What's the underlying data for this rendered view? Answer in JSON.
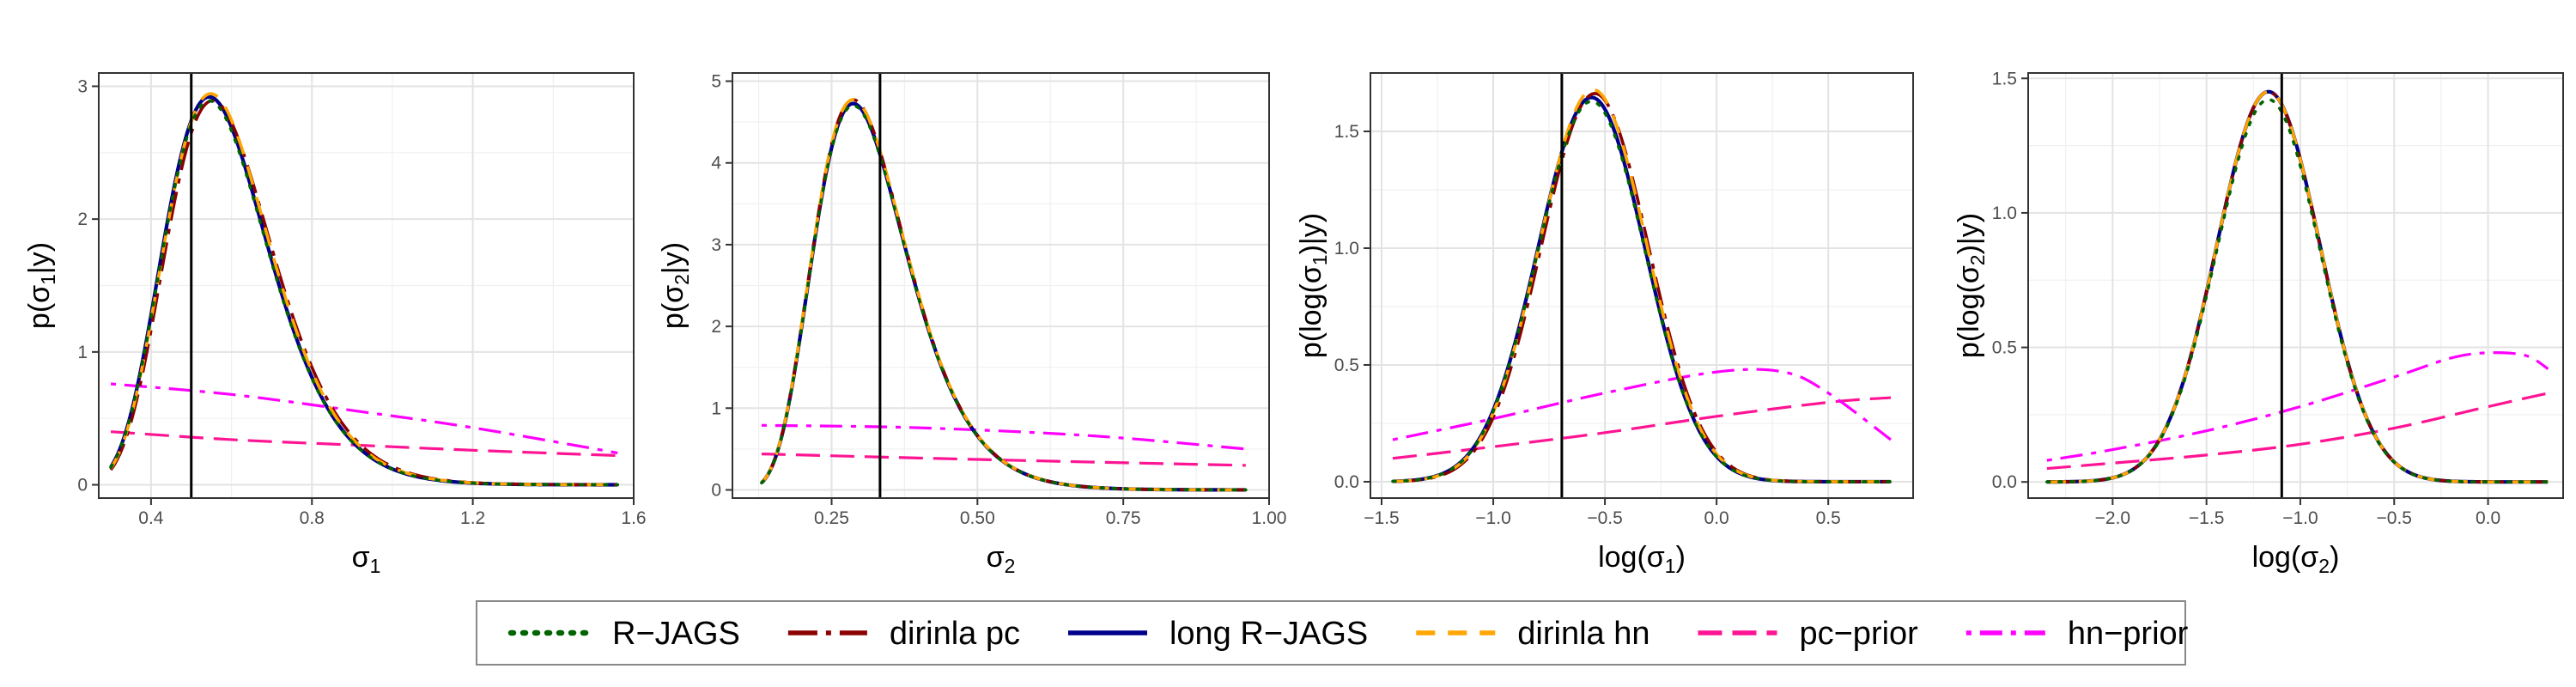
{
  "legend": {
    "items": [
      {
        "label": "R−JAGS",
        "color": "#006400",
        "dash": "3,11",
        "cap": "round"
      },
      {
        "label": "dirinla pc",
        "color": "#8b0000",
        "dash": "34,10,6,10",
        "cap": "butt"
      },
      {
        "label": "long R−JAGS",
        "color": "#00008b",
        "dash": "",
        "cap": "butt"
      },
      {
        "label": "dirinla hn",
        "color": "#ffa500",
        "dash": "22,15",
        "cap": "butt"
      },
      {
        "label": "pc−prior",
        "color": "#ff1493",
        "dash": "28,12",
        "cap": "butt"
      },
      {
        "label": "hn−prior",
        "color": "#ff00ff",
        "dash": "6,10,26,10",
        "cap": "butt"
      }
    ]
  },
  "chart_data": [
    {
      "type": "line",
      "xlabel": {
        "main": "σ",
        "sub": "1"
      },
      "ylabel": {
        "pre": "p(σ",
        "sub": "1",
        "post": "|y)"
      },
      "xlim": [
        0.27,
        1.6
      ],
      "ylim": [
        -0.1,
        3.1
      ],
      "xticks": [
        {
          "v": 0.4,
          "t": "0.4"
        },
        {
          "v": 0.8,
          "t": "0.8"
        },
        {
          "v": 1.2,
          "t": "1.2"
        },
        {
          "v": 1.6,
          "t": "1.6"
        }
      ],
      "yticks": [
        {
          "v": 0,
          "t": "0"
        },
        {
          "v": 1,
          "t": "1"
        },
        {
          "v": 2,
          "t": "2"
        },
        {
          "v": 3,
          "t": "3"
        }
      ],
      "vline": 0.5,
      "grid": true,
      "posterior": {
        "dist": "lognormal",
        "mu": -0.55,
        "s": 0.24,
        "range": [
          0.3,
          1.56
        ]
      },
      "series": [
        {
          "name": "R−JAGS",
          "mu_shift": 0.0,
          "scale": 0.975
        },
        {
          "name": "dirinla pc",
          "mu_shift": 0.015,
          "scale": 0.99
        },
        {
          "name": "long R−JAGS",
          "mu_shift": 0.0,
          "scale": 0.985
        },
        {
          "name": "dirinla hn",
          "mu_shift": 0.007,
          "scale": 1.0
        }
      ],
      "priors": [
        {
          "name": "pc−prior",
          "x": [
            0.3,
            0.6,
            0.9,
            1.2,
            1.56
          ],
          "y": [
            0.4,
            0.34,
            0.3,
            0.26,
            0.22
          ]
        },
        {
          "name": "hn−prior",
          "x": [
            0.3,
            0.6,
            0.9,
            1.2,
            1.56
          ],
          "y": [
            0.76,
            0.68,
            0.56,
            0.43,
            0.24
          ]
        }
      ]
    },
    {
      "type": "line",
      "xlabel": {
        "main": "σ",
        "sub": "2"
      },
      "ylabel": {
        "pre": "p(σ",
        "sub": "2",
        "post": "|y)"
      },
      "xlim": [
        0.08,
        1.0
      ],
      "ylim": [
        -0.1,
        5.1
      ],
      "xticks": [
        {
          "v": 0.25,
          "t": "0.25"
        },
        {
          "v": 0.5,
          "t": "0.50"
        },
        {
          "v": 0.75,
          "t": "0.75"
        },
        {
          "v": 1.0,
          "t": "1.00"
        }
      ],
      "yticks": [
        {
          "v": 0,
          "t": "0"
        },
        {
          "v": 1,
          "t": "1"
        },
        {
          "v": 2,
          "t": "2"
        },
        {
          "v": 3,
          "t": "3"
        },
        {
          "v": 4,
          "t": "4"
        },
        {
          "v": 5,
          "t": "5"
        }
      ],
      "vline": 0.333,
      "grid": true,
      "posterior": {
        "dist": "lognormal",
        "mu": -1.17,
        "s": 0.28,
        "range": [
          0.13,
          0.96
        ]
      },
      "series": [
        {
          "name": "R−JAGS",
          "mu_shift": 0.0,
          "scale": 0.985
        },
        {
          "name": "dirinla pc",
          "mu_shift": 0.0,
          "scale": 1.0
        },
        {
          "name": "long R−JAGS",
          "mu_shift": 0.0,
          "scale": 0.99
        },
        {
          "name": "dirinla hn",
          "mu_shift": 0.0,
          "scale": 1.0
        }
      ],
      "priors": [
        {
          "name": "pc−prior",
          "x": [
            0.13,
            0.4,
            0.7,
            0.96
          ],
          "y": [
            0.44,
            0.39,
            0.34,
            0.3
          ]
        },
        {
          "name": "hn−prior",
          "x": [
            0.13,
            0.4,
            0.7,
            0.96
          ],
          "y": [
            0.79,
            0.76,
            0.66,
            0.5
          ]
        }
      ]
    },
    {
      "type": "line",
      "xlabel": {
        "main": "log(σ",
        "sub": "1",
        "post": ")"
      },
      "ylabel": {
        "pre": "p(log(σ",
        "sub": "1",
        "post": ")|y)"
      },
      "xlim": [
        -1.55,
        0.88
      ],
      "ylim": [
        -0.07,
        1.75
      ],
      "xticks": [
        {
          "v": -1.5,
          "t": "−1.5"
        },
        {
          "v": -1.0,
          "t": "−1.0"
        },
        {
          "v": -0.5,
          "t": "−0.5"
        },
        {
          "v": 0.0,
          "t": "0.0"
        },
        {
          "v": 0.5,
          "t": "0.5"
        }
      ],
      "yticks": [
        {
          "v": 0,
          "t": "0.0"
        },
        {
          "v": 0.5,
          "t": "0.5"
        },
        {
          "v": 1.0,
          "t": "1.0"
        },
        {
          "v": 1.5,
          "t": "1.5"
        }
      ],
      "vline": -0.693,
      "grid": true,
      "posterior": {
        "dist": "normal",
        "mu": -0.56,
        "s": 0.24,
        "range": [
          -1.45,
          0.78
        ]
      },
      "series": [
        {
          "name": "R−JAGS",
          "mu_shift": 0.0,
          "scale": 0.98
        },
        {
          "name": "dirinla pc",
          "mu_shift": 0.015,
          "scale": 1.0
        },
        {
          "name": "long R−JAGS",
          "mu_shift": 0.0,
          "scale": 0.99
        },
        {
          "name": "dirinla hn",
          "mu_shift": 0.007,
          "scale": 1.01
        }
      ],
      "priors": [
        {
          "name": "pc−prior",
          "x": [
            -1.45,
            -1.0,
            -0.5,
            0.0,
            0.5,
            0.78
          ],
          "y": [
            0.1,
            0.15,
            0.21,
            0.28,
            0.34,
            0.36
          ]
        },
        {
          "name": "hn−prior",
          "x": [
            -1.45,
            -1.0,
            -0.5,
            0.0,
            0.3,
            0.5,
            0.78
          ],
          "y": [
            0.18,
            0.27,
            0.38,
            0.47,
            0.47,
            0.38,
            0.18
          ]
        }
      ]
    },
    {
      "type": "line",
      "xlabel": {
        "main": "log(σ",
        "sub": "2",
        "post": ")"
      },
      "ylabel": {
        "pre": "p(log(σ",
        "sub": "2",
        "post": ")|y)"
      },
      "xlim": [
        -2.45,
        0.4
      ],
      "ylim": [
        -0.06,
        1.52
      ],
      "xticks": [
        {
          "v": -2.0,
          "t": "−2.0"
        },
        {
          "v": -1.5,
          "t": "−1.5"
        },
        {
          "v": -1.0,
          "t": "−1.0"
        },
        {
          "v": -0.5,
          "t": "−0.5"
        },
        {
          "v": 0.0,
          "t": "0.0"
        }
      ],
      "yticks": [
        {
          "v": 0,
          "t": "0.0"
        },
        {
          "v": 0.5,
          "t": "0.5"
        },
        {
          "v": 1.0,
          "t": "1.0"
        },
        {
          "v": 1.5,
          "t": "1.5"
        }
      ],
      "vline": -1.099,
      "grid": true,
      "posterior": {
        "dist": "normal",
        "mu": -1.17,
        "s": 0.275,
        "range": [
          -2.35,
          0.32
        ]
      },
      "series": [
        {
          "name": "R−JAGS",
          "mu_shift": 0.0,
          "scale": 0.98
        },
        {
          "name": "dirinla pc",
          "mu_shift": 0.0,
          "scale": 1.0
        },
        {
          "name": "long R−JAGS",
          "mu_shift": 0.0,
          "scale": 1.0
        },
        {
          "name": "dirinla hn",
          "mu_shift": 0.0,
          "scale": 1.0
        }
      ],
      "priors": [
        {
          "name": "pc−prior",
          "x": [
            -2.35,
            -2.0,
            -1.5,
            -1.0,
            -0.5,
            0.0,
            0.32
          ],
          "y": [
            0.05,
            0.07,
            0.1,
            0.14,
            0.2,
            0.28,
            0.33
          ]
        },
        {
          "name": "hn−prior",
          "x": [
            -2.35,
            -2.0,
            -1.5,
            -1.0,
            -0.5,
            -0.2,
            0.0,
            0.2,
            0.32
          ],
          "y": [
            0.08,
            0.12,
            0.19,
            0.28,
            0.39,
            0.46,
            0.48,
            0.47,
            0.42
          ]
        }
      ]
    }
  ]
}
